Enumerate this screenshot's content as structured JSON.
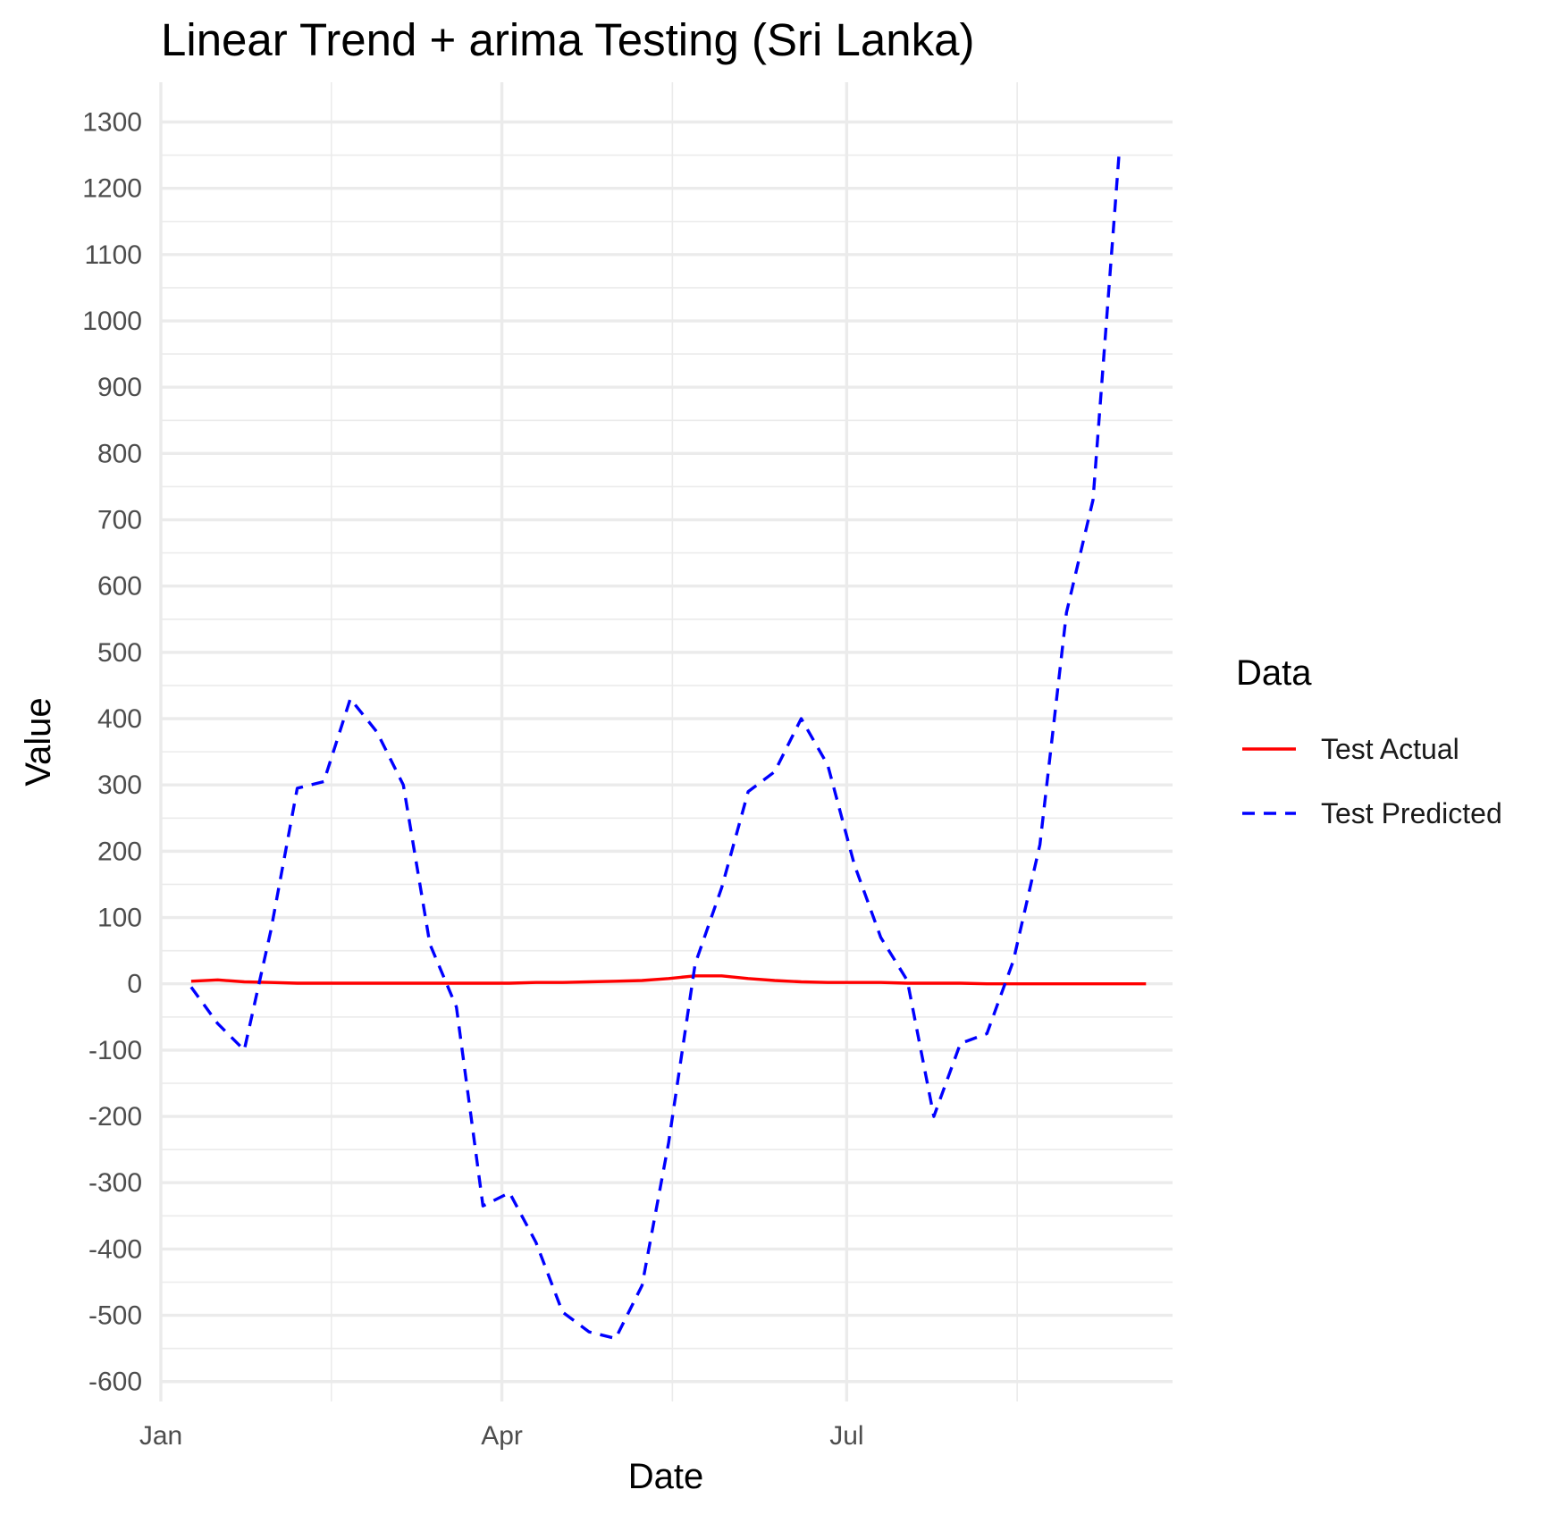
{
  "chart_data": {
    "type": "line",
    "title": "Linear Trend + arima Testing (Sri Lanka)",
    "xlabel": "Date",
    "ylabel": "Value",
    "x_axis_type": "date",
    "x_range": [
      "2023-01-01",
      "2023-09-25"
    ],
    "x_ticks": [
      {
        "date": "2023-01-01",
        "label": "Jan"
      },
      {
        "date": "2023-04-01",
        "label": "Apr"
      },
      {
        "date": "2023-07-01",
        "label": "Jul"
      }
    ],
    "x_minor_ticks": [
      "2023-02-15",
      "2023-05-16",
      "2023-08-15"
    ],
    "ylim": [
      -630,
      1360
    ],
    "y_ticks": [
      -600,
      -500,
      -400,
      -300,
      -200,
      -100,
      0,
      100,
      200,
      300,
      400,
      500,
      600,
      700,
      800,
      900,
      1000,
      1100,
      1200,
      1300
    ],
    "grid": true,
    "legend": {
      "title": "Data",
      "placement": "right"
    },
    "series": [
      {
        "name": "Test Actual",
        "color": "#ff0000",
        "line_style": "solid",
        "points": [
          [
            "2023-01-09",
            4
          ],
          [
            "2023-01-16",
            6
          ],
          [
            "2023-01-23",
            3
          ],
          [
            "2023-01-30",
            2
          ],
          [
            "2023-02-06",
            1
          ],
          [
            "2023-02-13",
            1
          ],
          [
            "2023-02-20",
            1
          ],
          [
            "2023-02-27",
            1
          ],
          [
            "2023-03-06",
            1
          ],
          [
            "2023-03-13",
            1
          ],
          [
            "2023-03-20",
            1
          ],
          [
            "2023-03-27",
            1
          ],
          [
            "2023-04-03",
            1
          ],
          [
            "2023-04-10",
            2
          ],
          [
            "2023-04-17",
            2
          ],
          [
            "2023-04-24",
            3
          ],
          [
            "2023-05-01",
            4
          ],
          [
            "2023-05-08",
            5
          ],
          [
            "2023-05-15",
            8
          ],
          [
            "2023-05-22",
            12
          ],
          [
            "2023-05-29",
            12
          ],
          [
            "2023-06-05",
            8
          ],
          [
            "2023-06-12",
            5
          ],
          [
            "2023-06-19",
            3
          ],
          [
            "2023-06-26",
            2
          ],
          [
            "2023-07-03",
            2
          ],
          [
            "2023-07-10",
            2
          ],
          [
            "2023-07-17",
            1
          ],
          [
            "2023-07-24",
            1
          ],
          [
            "2023-07-31",
            1
          ],
          [
            "2023-08-07",
            0
          ],
          [
            "2023-08-14",
            0
          ],
          [
            "2023-08-21",
            0
          ],
          [
            "2023-08-28",
            0
          ],
          [
            "2023-09-04",
            0
          ],
          [
            "2023-09-11",
            0
          ],
          [
            "2023-09-18",
            0
          ]
        ]
      },
      {
        "name": "Test Predicted",
        "color": "#0000ff",
        "line_style": "dashed",
        "points": [
          [
            "2023-01-09",
            -5
          ],
          [
            "2023-01-16",
            -60
          ],
          [
            "2023-01-23",
            -100
          ],
          [
            "2023-01-30",
            80
          ],
          [
            "2023-02-06",
            295
          ],
          [
            "2023-02-13",
            305
          ],
          [
            "2023-02-20",
            430
          ],
          [
            "2023-02-27",
            380
          ],
          [
            "2023-03-06",
            300
          ],
          [
            "2023-03-13",
            60
          ],
          [
            "2023-03-20",
            -35
          ],
          [
            "2023-03-27",
            -335
          ],
          [
            "2023-04-03",
            -315
          ],
          [
            "2023-04-10",
            -390
          ],
          [
            "2023-04-17",
            -495
          ],
          [
            "2023-04-24",
            -525
          ],
          [
            "2023-05-01",
            -535
          ],
          [
            "2023-05-08",
            -455
          ],
          [
            "2023-05-15",
            -240
          ],
          [
            "2023-05-22",
            30
          ],
          [
            "2023-05-29",
            145
          ],
          [
            "2023-06-05",
            290
          ],
          [
            "2023-06-12",
            320
          ],
          [
            "2023-06-19",
            400
          ],
          [
            "2023-06-26",
            330
          ],
          [
            "2023-07-03",
            180
          ],
          [
            "2023-07-10",
            70
          ],
          [
            "2023-07-17",
            5
          ],
          [
            "2023-07-24",
            -200
          ],
          [
            "2023-07-31",
            -90
          ],
          [
            "2023-08-07",
            -75
          ],
          [
            "2023-08-14",
            35
          ],
          [
            "2023-08-21",
            210
          ],
          [
            "2023-08-28",
            560
          ],
          [
            "2023-09-04",
            730
          ],
          [
            "2023-09-11",
            1260
          ]
        ]
      }
    ]
  }
}
